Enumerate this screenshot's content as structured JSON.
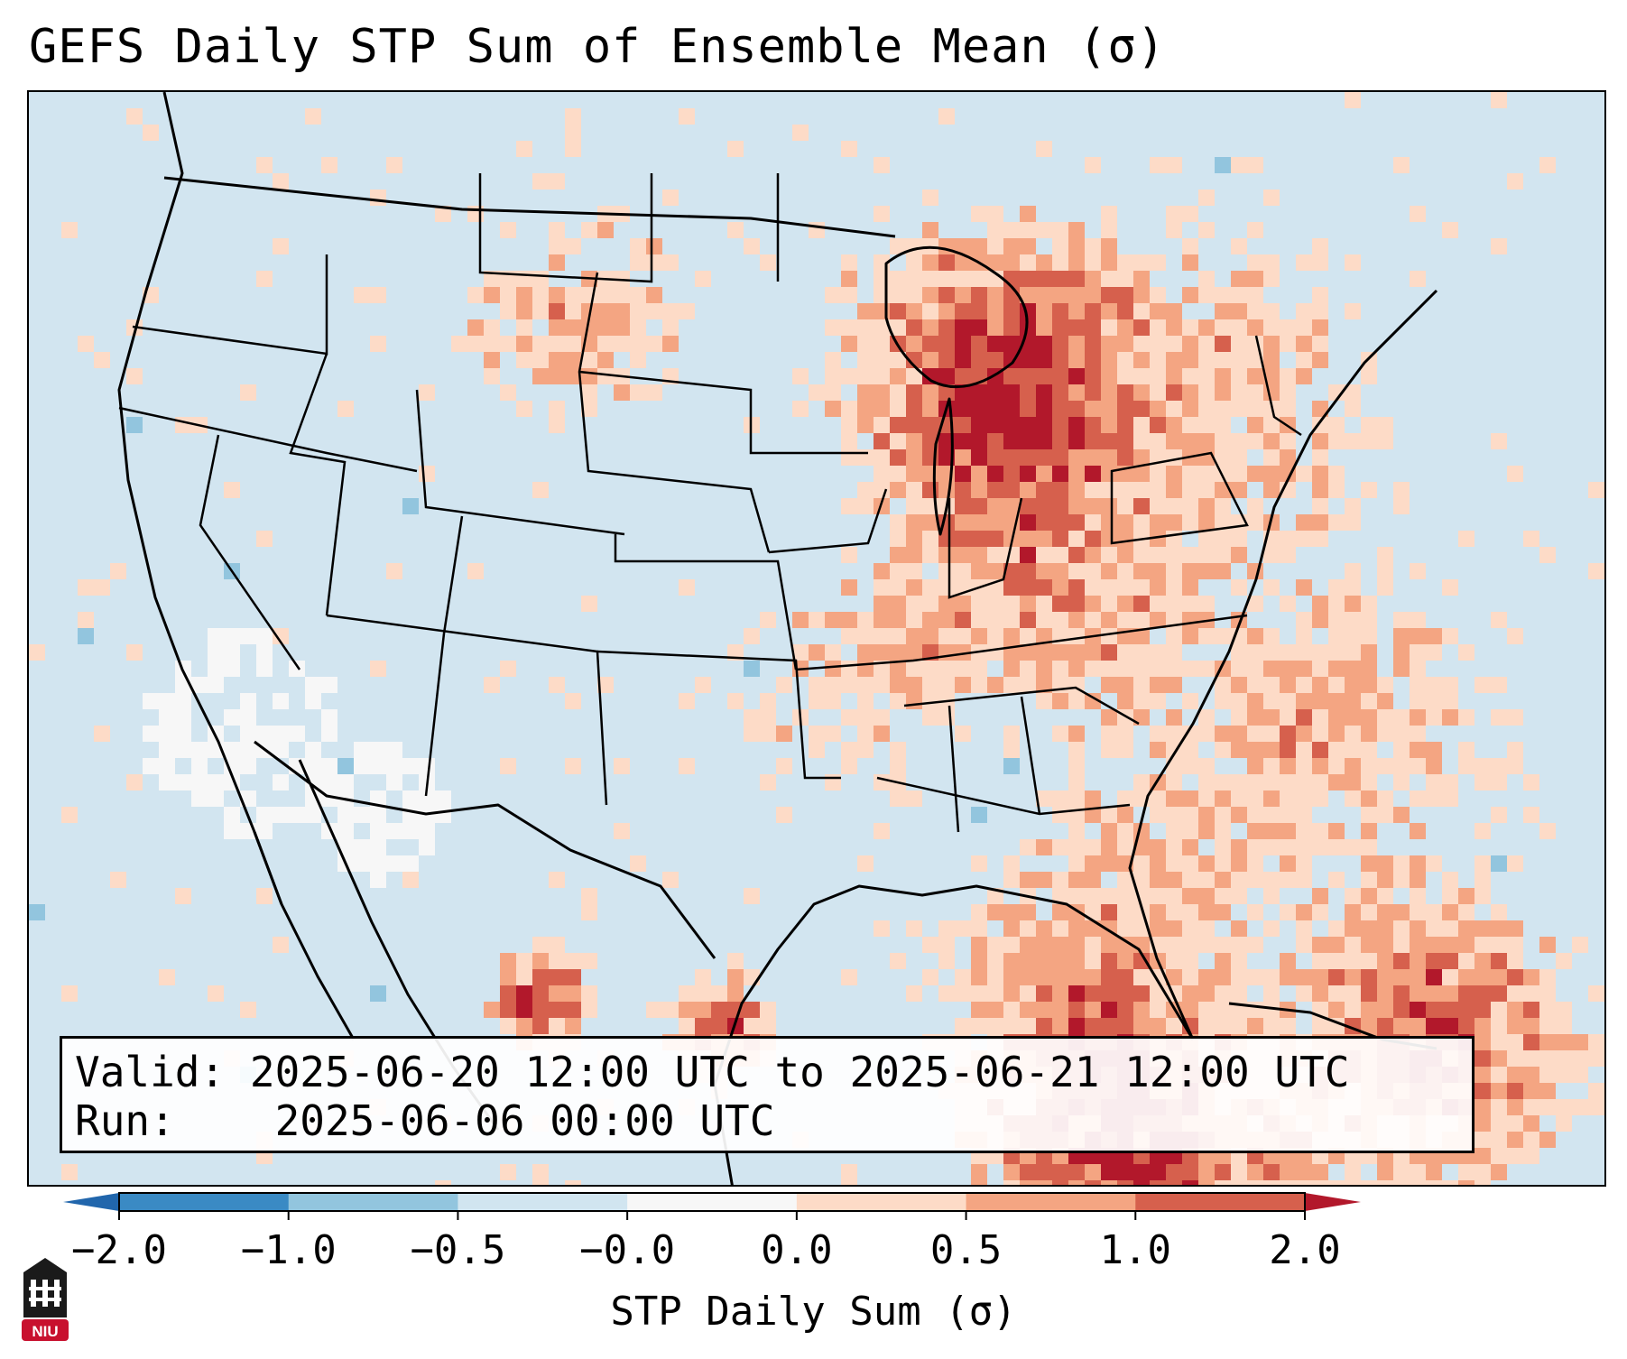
{
  "title": "GEFS Daily STP Sum of Ensemble Mean (σ)",
  "info": {
    "valid_label": "Valid:",
    "valid_value": "2025-06-20 12:00 UTC to 2025-06-21 12:00 UTC",
    "run_label": "Run:",
    "run_value": "2025-06-06 00:00 UTC"
  },
  "colorbar": {
    "label": "STP Daily Sum (σ)",
    "ticks": [
      "−2.0",
      "−1.0",
      "−0.5",
      "−0.0",
      "0.0",
      "0.5",
      "1.0",
      "2.0"
    ],
    "bins": [
      {
        "from": -2.0,
        "to": -1.0,
        "color": "#3a8ac4"
      },
      {
        "from": -1.0,
        "to": -0.5,
        "color": "#92c5de"
      },
      {
        "from": -0.5,
        "to": -0.0,
        "color": "#d1e5f0"
      },
      {
        "from": -0.0,
        "to": 0.0,
        "color": "#f7f7f7"
      },
      {
        "from": 0.0,
        "to": 0.5,
        "color": "#fddbc7"
      },
      {
        "from": 0.5,
        "to": 1.0,
        "color": "#f4a582"
      },
      {
        "from": 1.0,
        "to": 2.0,
        "color": "#d6604d"
      }
    ],
    "under_color": "#2166ac",
    "over_color": "#b2182b"
  },
  "logo": {
    "text": "NIU",
    "colors": {
      "dark": "#1a1a1a",
      "red": "#c8102e"
    }
  }
}
